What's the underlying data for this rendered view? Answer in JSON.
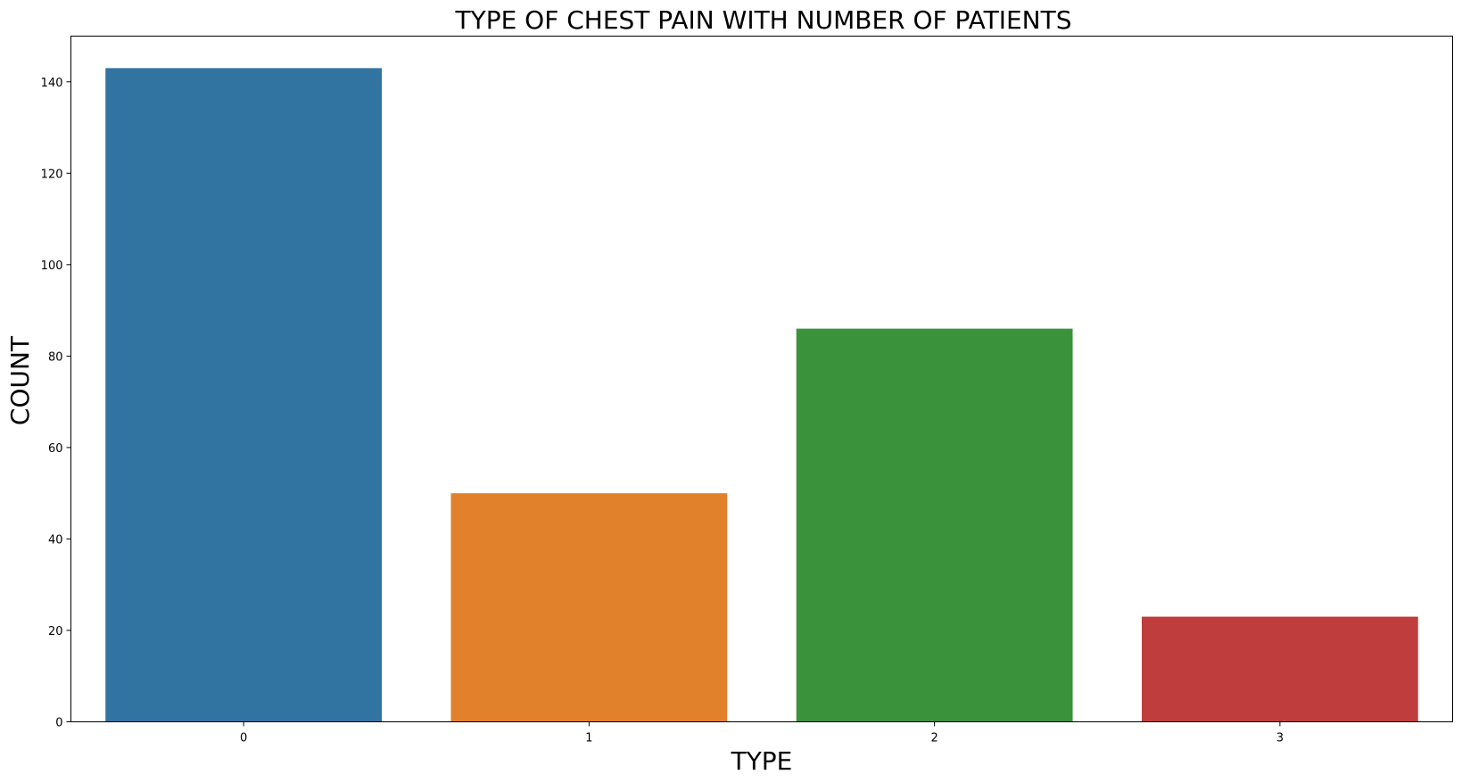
{
  "chart_data": {
    "type": "bar",
    "title": "TYPE OF CHEST PAIN WITH NUMBER OF PATIENTS",
    "xlabel": "TYPE",
    "ylabel": "COUNT",
    "categories": [
      "0",
      "1",
      "2",
      "3"
    ],
    "values": [
      143,
      50,
      86,
      23
    ],
    "colors": [
      "#3274a1",
      "#e1812c",
      "#3a923a",
      "#c03d3e"
    ],
    "ylim": [
      0,
      150
    ],
    "yticks": [
      0,
      20,
      40,
      60,
      80,
      100,
      120,
      140
    ],
    "grid": false,
    "legend": false
  }
}
